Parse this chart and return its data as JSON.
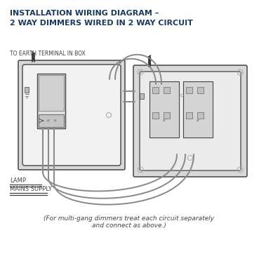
{
  "title_line1": "INSTALLATION WIRING DIAGRAM –",
  "title_line2": "2 WAY DIMMERS WIRED IN 2 WAY CIRCUIT",
  "label_earth": "TO EARTH TERMINAL IN BOX",
  "label_lamp": "LAMP",
  "label_mains": "MAINS SUPPLY",
  "footnote": "(For multi-gang dimmers treat each circuit separately\nand connect as above.)",
  "bg_color": "#ffffff",
  "border_color": "#aaaaaa",
  "line_color": "#444444",
  "wire_color": "#888888",
  "dark_wire": "#333333",
  "title_color": "#1a3a5c",
  "figsize": [
    3.69,
    3.72
  ],
  "dpi": 100
}
